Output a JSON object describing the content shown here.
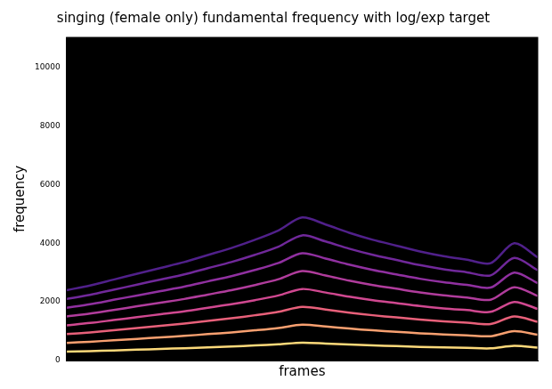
{
  "chart_data": {
    "type": "line",
    "title": "singing (female only) fundamental frequency with log/exp target",
    "x_label": "frames",
    "y_label": "frequency",
    "x": [
      0,
      20,
      40,
      60,
      80,
      100,
      120,
      140,
      160,
      180,
      200,
      220,
      240,
      260,
      280,
      300,
      320,
      340,
      360,
      380,
      400
    ],
    "xlim": [
      0,
      400
    ],
    "ylim": [
      0,
      11025
    ],
    "yticks": [
      0,
      2000,
      4000,
      6000,
      8000,
      10000
    ],
    "grid": false,
    "tick_labels": "y",
    "series": [
      {
        "color": "#fcd97a",
        "values": [
          300,
          320,
          345,
          370,
          395,
          420,
          450,
          480,
          515,
          555,
          610,
          580,
          545,
          515,
          490,
          465,
          445,
          430,
          415,
          500,
          440
        ]
      },
      {
        "color": "#f8a070",
        "values": [
          600,
          640,
          690,
          740,
          790,
          840,
          900,
          960,
          1030,
          1110,
          1220,
          1160,
          1090,
          1030,
          980,
          930,
          890,
          860,
          830,
          1000,
          880
        ]
      },
      {
        "color": "#e8607a",
        "values": [
          900,
          960,
          1035,
          1110,
          1185,
          1260,
          1350,
          1440,
          1545,
          1665,
          1830,
          1740,
          1635,
          1545,
          1470,
          1395,
          1335,
          1290,
          1245,
          1500,
          1320
        ]
      },
      {
        "color": "#d04890",
        "values": [
          1200,
          1280,
          1380,
          1480,
          1580,
          1680,
          1800,
          1920,
          2060,
          2220,
          2440,
          2320,
          2180,
          2060,
          1960,
          1860,
          1780,
          1720,
          1660,
          2000,
          1760
        ]
      },
      {
        "color": "#b03c9c",
        "values": [
          1500,
          1600,
          1725,
          1850,
          1975,
          2100,
          2250,
          2400,
          2575,
          2775,
          3050,
          2900,
          2725,
          2575,
          2450,
          2325,
          2225,
          2150,
          2075,
          2500,
          2200
        ]
      },
      {
        "color": "#9030a0",
        "values": [
          1800,
          1920,
          2070,
          2220,
          2370,
          2520,
          2700,
          2880,
          3090,
          3330,
          3660,
          3480,
          3270,
          3090,
          2940,
          2790,
          2670,
          2580,
          2490,
          3000,
          2640
        ]
      },
      {
        "color": "#70289a",
        "values": [
          2100,
          2240,
          2415,
          2590,
          2765,
          2940,
          3150,
          3360,
          3605,
          3885,
          4270,
          4060,
          3815,
          3605,
          3430,
          3255,
          3115,
          3010,
          2905,
          3500,
          3080
        ]
      },
      {
        "color": "#50208a",
        "values": [
          2400,
          2560,
          2760,
          2960,
          3160,
          3360,
          3600,
          3840,
          4120,
          4440,
          4880,
          4640,
          4360,
          4120,
          3920,
          3720,
          3560,
          3440,
          3320,
          4000,
          3520
        ]
      }
    ]
  }
}
